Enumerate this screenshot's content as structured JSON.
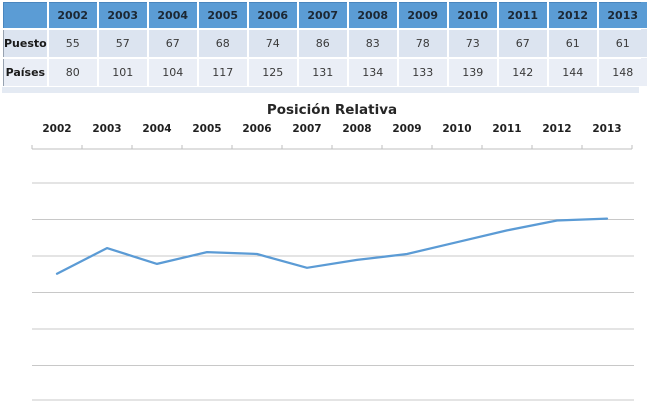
{
  "colors": {
    "header_bg": "#5b9cd5",
    "header_text": "#1c2733",
    "band1": "#dce4f0",
    "band2": "#eaeef6",
    "band_fragment": "#e4eaf3",
    "label_text": "#1a1a1a",
    "value_text": "#3a3a3a",
    "title_text": "#262626",
    "axis_label_text": "#1f1f1f",
    "axis_line": "#bfbfbf",
    "gridline": "#c8c8c8",
    "series_line": "#5b9bd5"
  },
  "table": {
    "corner_label": "",
    "years": [
      "2002",
      "2003",
      "2004",
      "2005",
      "2006",
      "2007",
      "2008",
      "2009",
      "2010",
      "2011",
      "2012",
      "2013"
    ],
    "rows": [
      {
        "label": "Puesto",
        "values": [
          55,
          57,
          67,
          68,
          74,
          86,
          83,
          78,
          73,
          67,
          61,
          61
        ]
      },
      {
        "label": "Países",
        "values": [
          80,
          101,
          104,
          117,
          125,
          131,
          134,
          133,
          139,
          142,
          144,
          148
        ]
      }
    ]
  },
  "chart_data": {
    "type": "line",
    "title": "Posición Relativa",
    "categories": [
      "2002",
      "2003",
      "2004",
      "2005",
      "2006",
      "2007",
      "2008",
      "2009",
      "2010",
      "2011",
      "2012",
      "2013"
    ],
    "series": [
      {
        "name": "Posición Relativa",
        "values": [
          0.31,
          0.44,
          0.36,
          0.42,
          0.41,
          0.34,
          0.38,
          0.41,
          0.47,
          0.53,
          0.58,
          0.59
        ]
      }
    ],
    "xlabel": "",
    "ylabel": "",
    "x_axis_position": "top",
    "y_axis_tick_labels": "hidden",
    "grid": "horizontal",
    "legend": "none",
    "ylim": [
      -0.45,
      0.82
    ],
    "gridline_step": 0.2
  }
}
